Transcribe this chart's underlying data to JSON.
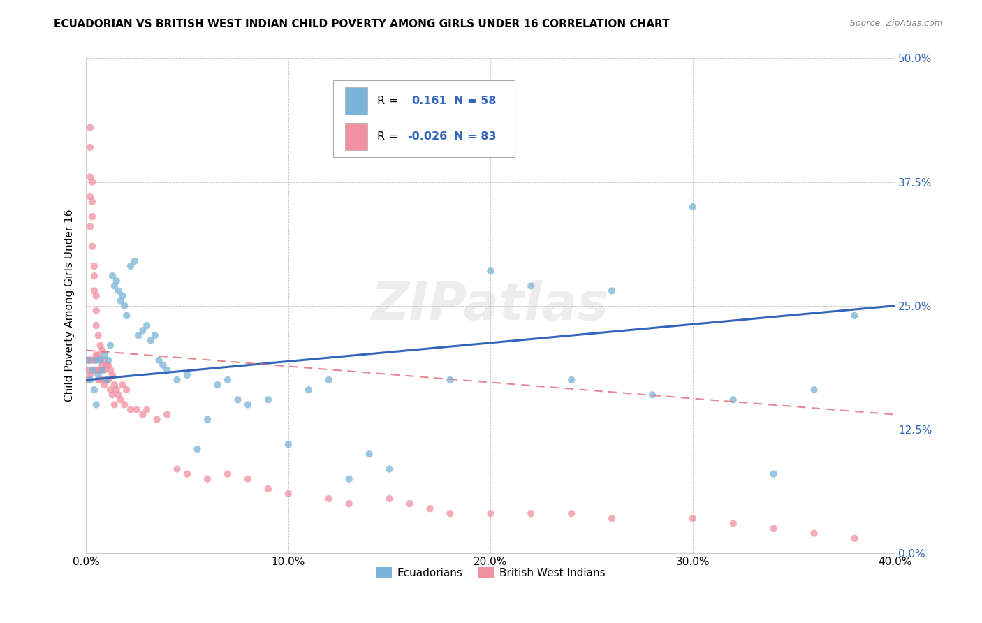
{
  "title": "ECUADORIAN VS BRITISH WEST INDIAN CHILD POVERTY AMONG GIRLS UNDER 16 CORRELATION CHART",
  "source": "Source: ZipAtlas.com",
  "ylabel": "Child Poverty Among Girls Under 16",
  "watermark": "ZIPatlas",
  "ecuadorians_color": "#7ab4d8",
  "bwi_color": "#f090a0",
  "trend_ecuadorians_color": "#3366bb",
  "trend_bwi_color": "#e07080",
  "xlim": [
    0.0,
    0.4
  ],
  "ylim": [
    0.0,
    0.5
  ],
  "xticks": [
    0.0,
    0.1,
    0.2,
    0.3,
    0.4
  ],
  "yticks": [
    0.0,
    0.125,
    0.25,
    0.375,
    0.5
  ],
  "xtick_labels": [
    "0.0%",
    "10.0%",
    "20.0%",
    "30.0%",
    "40.0%"
  ],
  "ytick_labels": [
    "0.0%",
    "12.5%",
    "25.0%",
    "37.5%",
    "50.0%"
  ],
  "legend_r1": "0.161",
  "legend_n1": "58",
  "legend_r2": "-0.026",
  "legend_n2": "83",
  "ecuadorians_x": [
    0.001,
    0.002,
    0.003,
    0.004,
    0.005,
    0.005,
    0.006,
    0.007,
    0.008,
    0.009,
    0.01,
    0.011,
    0.012,
    0.013,
    0.014,
    0.015,
    0.016,
    0.017,
    0.018,
    0.019,
    0.02,
    0.022,
    0.024,
    0.026,
    0.028,
    0.03,
    0.032,
    0.034,
    0.036,
    0.038,
    0.04,
    0.045,
    0.05,
    0.055,
    0.06,
    0.065,
    0.07,
    0.075,
    0.08,
    0.09,
    0.1,
    0.11,
    0.12,
    0.13,
    0.14,
    0.15,
    0.16,
    0.18,
    0.2,
    0.22,
    0.24,
    0.26,
    0.28,
    0.3,
    0.32,
    0.34,
    0.36,
    0.38
  ],
  "ecuadorians_y": [
    0.195,
    0.175,
    0.185,
    0.165,
    0.195,
    0.15,
    0.18,
    0.195,
    0.185,
    0.2,
    0.175,
    0.195,
    0.21,
    0.28,
    0.27,
    0.275,
    0.265,
    0.255,
    0.26,
    0.25,
    0.24,
    0.29,
    0.295,
    0.22,
    0.225,
    0.23,
    0.215,
    0.22,
    0.195,
    0.19,
    0.185,
    0.175,
    0.18,
    0.105,
    0.135,
    0.17,
    0.175,
    0.155,
    0.15,
    0.155,
    0.11,
    0.165,
    0.175,
    0.075,
    0.1,
    0.085,
    0.46,
    0.175,
    0.285,
    0.27,
    0.175,
    0.265,
    0.16,
    0.35,
    0.155,
    0.08,
    0.165,
    0.24
  ],
  "bwi_x": [
    0.001,
    0.001,
    0.001,
    0.002,
    0.002,
    0.002,
    0.002,
    0.002,
    0.002,
    0.002,
    0.003,
    0.003,
    0.003,
    0.003,
    0.003,
    0.004,
    0.004,
    0.004,
    0.004,
    0.004,
    0.005,
    0.005,
    0.005,
    0.005,
    0.005,
    0.006,
    0.006,
    0.006,
    0.006,
    0.007,
    0.007,
    0.007,
    0.007,
    0.008,
    0.008,
    0.008,
    0.009,
    0.009,
    0.009,
    0.01,
    0.01,
    0.011,
    0.011,
    0.012,
    0.012,
    0.013,
    0.013,
    0.014,
    0.014,
    0.015,
    0.016,
    0.017,
    0.018,
    0.019,
    0.02,
    0.022,
    0.025,
    0.028,
    0.03,
    0.035,
    0.04,
    0.045,
    0.05,
    0.06,
    0.07,
    0.08,
    0.09,
    0.1,
    0.12,
    0.13,
    0.15,
    0.16,
    0.17,
    0.18,
    0.2,
    0.22,
    0.24,
    0.26,
    0.3,
    0.32,
    0.34,
    0.36,
    0.38
  ],
  "bwi_y": [
    0.195,
    0.185,
    0.175,
    0.43,
    0.41,
    0.38,
    0.36,
    0.33,
    0.195,
    0.18,
    0.375,
    0.355,
    0.34,
    0.31,
    0.195,
    0.29,
    0.28,
    0.265,
    0.195,
    0.185,
    0.26,
    0.245,
    0.23,
    0.2,
    0.185,
    0.22,
    0.2,
    0.185,
    0.175,
    0.21,
    0.195,
    0.185,
    0.175,
    0.205,
    0.19,
    0.175,
    0.195,
    0.185,
    0.17,
    0.19,
    0.175,
    0.19,
    0.175,
    0.185,
    0.165,
    0.18,
    0.16,
    0.17,
    0.15,
    0.165,
    0.16,
    0.155,
    0.17,
    0.15,
    0.165,
    0.145,
    0.145,
    0.14,
    0.145,
    0.135,
    0.14,
    0.085,
    0.08,
    0.075,
    0.08,
    0.075,
    0.065,
    0.06,
    0.055,
    0.05,
    0.055,
    0.05,
    0.045,
    0.04,
    0.04,
    0.04,
    0.04,
    0.035,
    0.035,
    0.03,
    0.025,
    0.02,
    0.015
  ],
  "ecu_trend_x": [
    0.0,
    0.4
  ],
  "ecu_trend_y": [
    0.175,
    0.25
  ],
  "bwi_trend_x": [
    0.0,
    0.4
  ],
  "bwi_trend_y": [
    0.205,
    0.14
  ]
}
